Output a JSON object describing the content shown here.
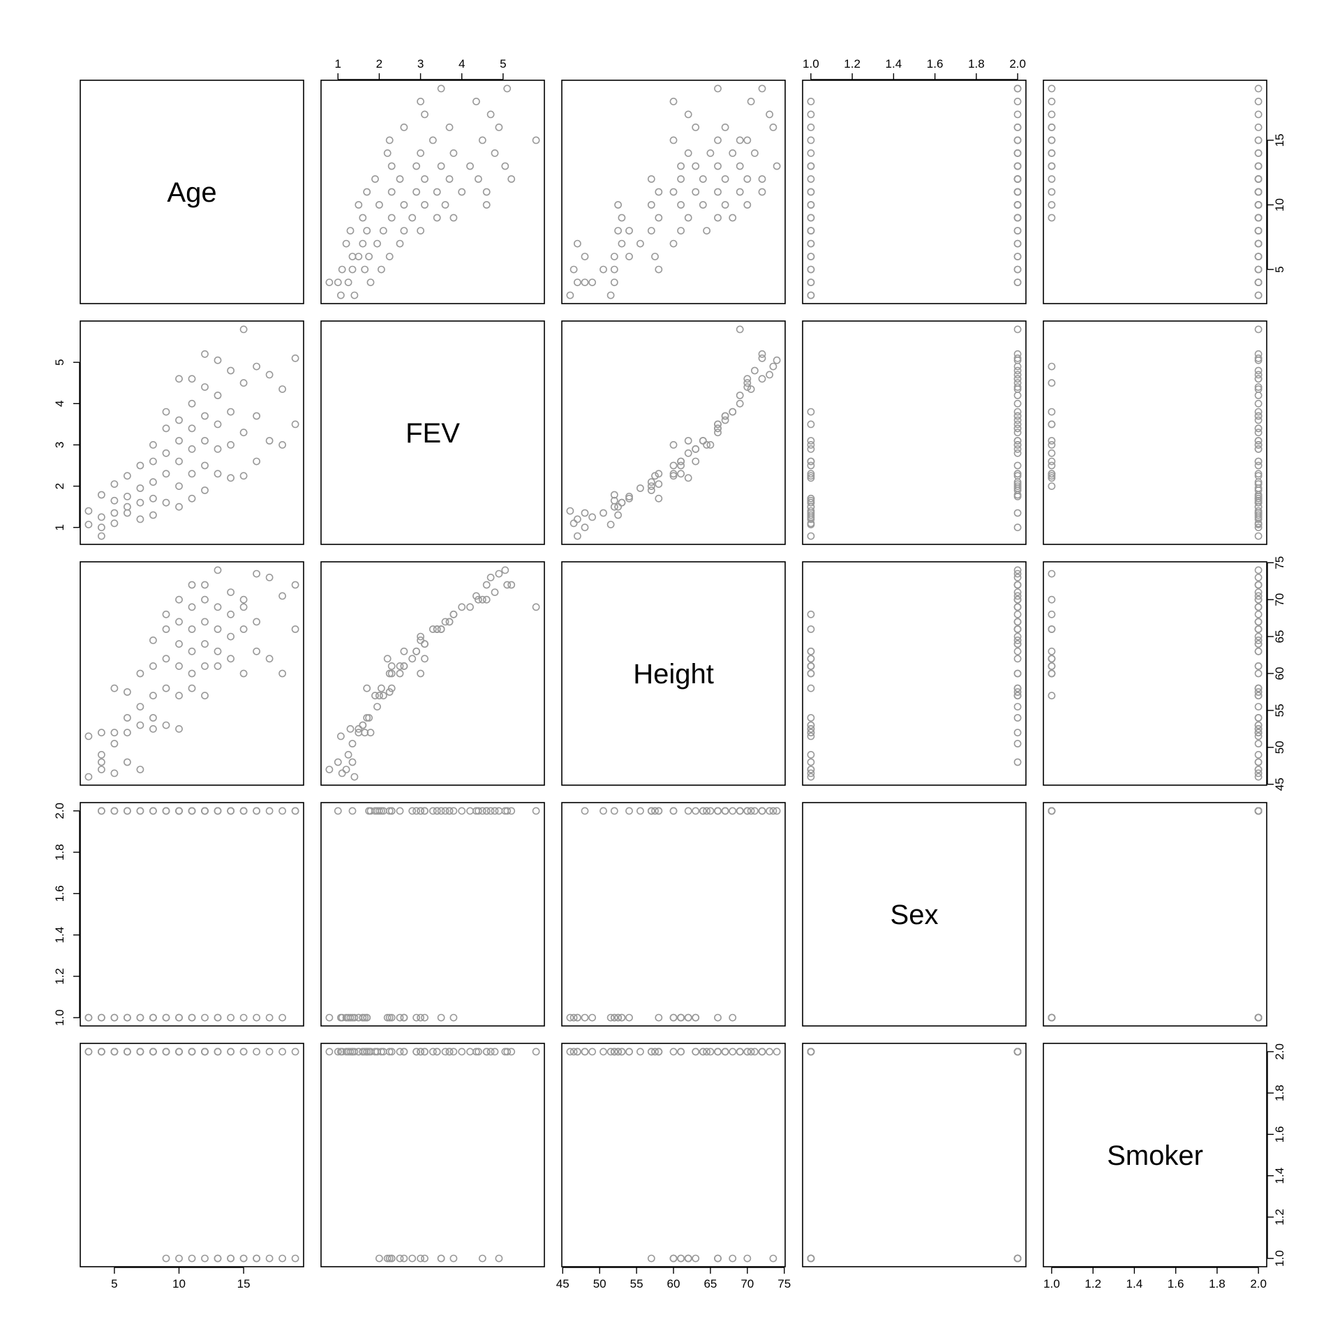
{
  "chart_data": {
    "type": "scatter",
    "kind": "scatterplot-matrix",
    "variables": [
      {
        "name": "Age",
        "range": [
          3,
          19
        ],
        "ticks": [
          5,
          10,
          15
        ],
        "tick_labels": [
          "5",
          "10",
          "15"
        ]
      },
      {
        "name": "FEV",
        "range": [
          0.79,
          5.8
        ],
        "ticks": [
          1,
          2,
          3,
          4,
          5
        ],
        "tick_labels": [
          "1",
          "2",
          "3",
          "4",
          "5"
        ]
      },
      {
        "name": "Height",
        "range": [
          46,
          74
        ],
        "ticks": [
          45,
          50,
          55,
          60,
          65,
          70,
          75
        ],
        "tick_labels": [
          "45",
          "50",
          "55",
          "60",
          "65",
          "70",
          "75"
        ]
      },
      {
        "name": "Sex",
        "range": [
          1,
          2
        ],
        "ticks": [
          1.0,
          1.2,
          1.4,
          1.6,
          1.8,
          2.0
        ],
        "tick_labels": [
          "1.0",
          "1.2",
          "1.4",
          "1.6",
          "1.8",
          "2.0"
        ]
      },
      {
        "name": "Smoker",
        "range": [
          1,
          2
        ],
        "ticks": [
          1.0,
          1.2,
          1.4,
          1.6,
          1.8,
          2.0
        ],
        "tick_labels": [
          "1.0",
          "1.2",
          "1.4",
          "1.6",
          "1.8",
          "2.0"
        ]
      }
    ],
    "axis_placement": {
      "top": [
        "FEV",
        "Sex"
      ],
      "bottom": [
        "Age",
        "Height",
        "Smoker"
      ],
      "left": [
        "FEV",
        "Sex"
      ],
      "right": [
        "Age",
        "Height",
        "Smoker"
      ]
    },
    "point_color": "#999999",
    "marker": "open-circle",
    "observations": [
      {
        "Age": 3,
        "FEV": 1.07,
        "Height": 51.5,
        "Sex": 1,
        "Smoker": 2
      },
      {
        "Age": 3,
        "FEV": 1.4,
        "Height": 46.0,
        "Sex": 1,
        "Smoker": 2
      },
      {
        "Age": 4,
        "FEV": 0.79,
        "Height": 47.0,
        "Sex": 1,
        "Smoker": 2
      },
      {
        "Age": 4,
        "FEV": 1.79,
        "Height": 52.0,
        "Sex": 2,
        "Smoker": 2
      },
      {
        "Age": 4,
        "FEV": 1.0,
        "Height": 48.0,
        "Sex": 2,
        "Smoker": 2
      },
      {
        "Age": 4,
        "FEV": 1.25,
        "Height": 49.0,
        "Sex": 1,
        "Smoker": 2
      },
      {
        "Age": 5,
        "FEV": 1.35,
        "Height": 50.5,
        "Sex": 2,
        "Smoker": 2
      },
      {
        "Age": 5,
        "FEV": 1.65,
        "Height": 52.0,
        "Sex": 1,
        "Smoker": 2
      },
      {
        "Age": 5,
        "FEV": 2.05,
        "Height": 58.0,
        "Sex": 2,
        "Smoker": 2
      },
      {
        "Age": 5,
        "FEV": 1.1,
        "Height": 46.5,
        "Sex": 1,
        "Smoker": 2
      },
      {
        "Age": 6,
        "FEV": 1.5,
        "Height": 52.0,
        "Sex": 1,
        "Smoker": 2
      },
      {
        "Age": 6,
        "FEV": 1.75,
        "Height": 54.0,
        "Sex": 2,
        "Smoker": 2
      },
      {
        "Age": 6,
        "FEV": 2.25,
        "Height": 57.5,
        "Sex": 2,
        "Smoker": 2
      },
      {
        "Age": 6,
        "FEV": 1.35,
        "Height": 48.0,
        "Sex": 1,
        "Smoker": 2
      },
      {
        "Age": 7,
        "FEV": 1.6,
        "Height": 53.0,
        "Sex": 1,
        "Smoker": 2
      },
      {
        "Age": 7,
        "FEV": 1.95,
        "Height": 55.5,
        "Sex": 2,
        "Smoker": 2
      },
      {
        "Age": 7,
        "FEV": 2.5,
        "Height": 60.0,
        "Sex": 2,
        "Smoker": 2
      },
      {
        "Age": 7,
        "FEV": 1.2,
        "Height": 47.0,
        "Sex": 1,
        "Smoker": 2
      },
      {
        "Age": 8,
        "FEV": 1.7,
        "Height": 54.0,
        "Sex": 1,
        "Smoker": 2
      },
      {
        "Age": 8,
        "FEV": 2.1,
        "Height": 57.0,
        "Sex": 2,
        "Smoker": 2
      },
      {
        "Age": 8,
        "FEV": 2.6,
        "Height": 61.0,
        "Sex": 1,
        "Smoker": 2
      },
      {
        "Age": 8,
        "FEV": 3.0,
        "Height": 64.5,
        "Sex": 2,
        "Smoker": 2
      },
      {
        "Age": 8,
        "FEV": 1.3,
        "Height": 52.5,
        "Sex": 1,
        "Smoker": 2
      },
      {
        "Age": 9,
        "FEV": 1.6,
        "Height": 53.0,
        "Sex": 1,
        "Smoker": 2
      },
      {
        "Age": 9,
        "FEV": 2.3,
        "Height": 58.0,
        "Sex": 2,
        "Smoker": 2
      },
      {
        "Age": 9,
        "FEV": 2.8,
        "Height": 62.0,
        "Sex": 2,
        "Smoker": 1
      },
      {
        "Age": 9,
        "FEV": 3.4,
        "Height": 66.0,
        "Sex": 2,
        "Smoker": 2
      },
      {
        "Age": 9,
        "FEV": 3.8,
        "Height": 68.0,
        "Sex": 1,
        "Smoker": 2
      },
      {
        "Age": 10,
        "FEV": 1.5,
        "Height": 52.5,
        "Sex": 1,
        "Smoker": 2
      },
      {
        "Age": 10,
        "FEV": 2.0,
        "Height": 57.0,
        "Sex": 2,
        "Smoker": 1
      },
      {
        "Age": 10,
        "FEV": 2.6,
        "Height": 61.0,
        "Sex": 1,
        "Smoker": 2
      },
      {
        "Age": 10,
        "FEV": 3.1,
        "Height": 64.0,
        "Sex": 2,
        "Smoker": 2
      },
      {
        "Age": 10,
        "FEV": 3.6,
        "Height": 67.0,
        "Sex": 2,
        "Smoker": 2
      },
      {
        "Age": 10,
        "FEV": 4.6,
        "Height": 70.0,
        "Sex": 2,
        "Smoker": 2
      },
      {
        "Age": 11,
        "FEV": 1.7,
        "Height": 58.0,
        "Sex": 1,
        "Smoker": 2
      },
      {
        "Age": 11,
        "FEV": 2.3,
        "Height": 60.0,
        "Sex": 2,
        "Smoker": 1
      },
      {
        "Age": 11,
        "FEV": 2.9,
        "Height": 63.0,
        "Sex": 1,
        "Smoker": 2
      },
      {
        "Age": 11,
        "FEV": 3.4,
        "Height": 66.0,
        "Sex": 2,
        "Smoker": 2
      },
      {
        "Age": 11,
        "FEV": 4.0,
        "Height": 69.0,
        "Sex": 2,
        "Smoker": 2
      },
      {
        "Age": 11,
        "FEV": 4.6,
        "Height": 72.0,
        "Sex": 2,
        "Smoker": 2
      },
      {
        "Age": 12,
        "FEV": 1.9,
        "Height": 57.0,
        "Sex": 2,
        "Smoker": 2
      },
      {
        "Age": 12,
        "FEV": 2.5,
        "Height": 61.0,
        "Sex": 1,
        "Smoker": 1
      },
      {
        "Age": 12,
        "FEV": 3.1,
        "Height": 64.0,
        "Sex": 2,
        "Smoker": 2
      },
      {
        "Age": 12,
        "FEV": 3.7,
        "Height": 67.0,
        "Sex": 2,
        "Smoker": 2
      },
      {
        "Age": 12,
        "FEV": 4.4,
        "Height": 70.0,
        "Sex": 2,
        "Smoker": 2
      },
      {
        "Age": 12,
        "FEV": 5.2,
        "Height": 72.0,
        "Sex": 2,
        "Smoker": 2
      },
      {
        "Age": 13,
        "FEV": 2.3,
        "Height": 61.0,
        "Sex": 1,
        "Smoker": 1
      },
      {
        "Age": 13,
        "FEV": 2.9,
        "Height": 63.0,
        "Sex": 2,
        "Smoker": 2
      },
      {
        "Age": 13,
        "FEV": 3.5,
        "Height": 66.0,
        "Sex": 1,
        "Smoker": 1
      },
      {
        "Age": 13,
        "FEV": 4.2,
        "Height": 69.0,
        "Sex": 2,
        "Smoker": 2
      },
      {
        "Age": 13,
        "FEV": 5.05,
        "Height": 74.0,
        "Sex": 2,
        "Smoker": 2
      },
      {
        "Age": 14,
        "FEV": 2.2,
        "Height": 62.0,
        "Sex": 1,
        "Smoker": 1
      },
      {
        "Age": 14,
        "FEV": 3.0,
        "Height": 65.0,
        "Sex": 2,
        "Smoker": 2
      },
      {
        "Age": 14,
        "FEV": 3.8,
        "Height": 68.0,
        "Sex": 2,
        "Smoker": 1
      },
      {
        "Age": 14,
        "FEV": 4.8,
        "Height": 71.0,
        "Sex": 2,
        "Smoker": 2
      },
      {
        "Age": 15,
        "FEV": 2.25,
        "Height": 60.0,
        "Sex": 1,
        "Smoker": 1
      },
      {
        "Age": 15,
        "FEV": 3.3,
        "Height": 66.0,
        "Sex": 2,
        "Smoker": 2
      },
      {
        "Age": 15,
        "FEV": 4.5,
        "Height": 70.0,
        "Sex": 2,
        "Smoker": 1
      },
      {
        "Age": 15,
        "FEV": 5.8,
        "Height": 69.0,
        "Sex": 2,
        "Smoker": 2
      },
      {
        "Age": 16,
        "FEV": 2.6,
        "Height": 63.0,
        "Sex": 1,
        "Smoker": 1
      },
      {
        "Age": 16,
        "FEV": 3.7,
        "Height": 67.0,
        "Sex": 2,
        "Smoker": 2
      },
      {
        "Age": 16,
        "FEV": 4.9,
        "Height": 73.5,
        "Sex": 2,
        "Smoker": 1
      },
      {
        "Age": 17,
        "FEV": 3.1,
        "Height": 62.0,
        "Sex": 1,
        "Smoker": 1
      },
      {
        "Age": 17,
        "FEV": 4.7,
        "Height": 73.0,
        "Sex": 2,
        "Smoker": 2
      },
      {
        "Age": 18,
        "FEV": 3.0,
        "Height": 60.0,
        "Sex": 1,
        "Smoker": 1
      },
      {
        "Age": 18,
        "FEV": 4.35,
        "Height": 70.5,
        "Sex": 2,
        "Smoker": 2
      },
      {
        "Age": 19,
        "FEV": 3.5,
        "Height": 66.0,
        "Sex": 2,
        "Smoker": 1
      },
      {
        "Age": 19,
        "FEV": 5.1,
        "Height": 72.0,
        "Sex": 2,
        "Smoker": 2
      }
    ]
  }
}
